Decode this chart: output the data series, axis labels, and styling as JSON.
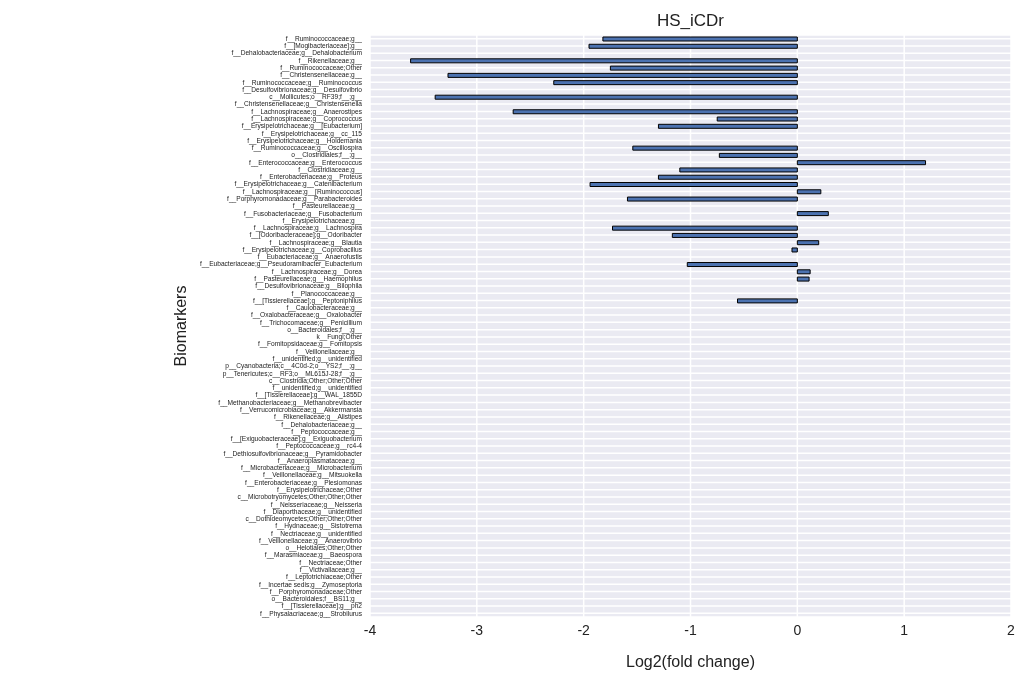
{
  "chart_data": {
    "type": "bar",
    "orientation": "horizontal",
    "title": "HS_iCDr",
    "xlabel": "Log2(fold change)",
    "ylabel": "Biomarkers",
    "categories": [
      "f__Ruminococcaceae;g__",
      "f__[Mogibacteriaceae];g__",
      "f__Dehalobacteriaceae;g__Dehalobacterium",
      "f__Rikenellaceae;g__",
      "f__Ruminococcaceae;Other",
      "f__Christensenellaceae;g__",
      "f__Ruminococcaceae;g__Ruminococcus",
      "f__Desulfovibrionaceae;g__Desulfovibrio",
      "c__Mollicutes;o__RF39;f__;g__",
      "f__Christensenellaceae;g__Christensenella",
      "f__Lachnospiraceae;g__Anaerostipes",
      "f__Lachnospiraceae;g__Coprococcus",
      "f__Erysipelotrichaceae;g__[Eubacterium]",
      "f__Erysipelotrichaceae;g__cc_115",
      "f__Erysipelotrichaceae;g__Holdemania",
      "f__Ruminococcaceae;g__Oscillospira",
      "o__Clostridiales;f__;g__",
      "f__Enterococcaceae;g__Enterococcus",
      "f__Clostridiaceae;g__",
      "f__Enterobacteriaceae;g__Proteus",
      "f__Erysipelotrichaceae;g__Catenibacterium",
      "f__Lachnospiraceae;g__[Ruminococcus]",
      "f__Porphyromonadaceae;g__Parabacteroides",
      "f__Pasteurellaceae;g__",
      "f__Fusobacteriaceae;g__Fusobacterium",
      "f__Erysipelotrichaceae;g__",
      "f__Lachnospiraceae;g__Lachnospira",
      "f__[Odoribacteraceae];g__Odoribacter",
      "f__Lachnospiraceae;g__Blautia",
      "f__Erysipelotrichaceae;g__Coprobacillus",
      "f__Eubacteriaceae;g__Anaerofustis",
      "f__Eubacteriaceae;g__Pseudoramibacter_Eubacterium",
      "f__Lachnospiraceae;g__Dorea",
      "f__Pasteurellaceae;g__Haemophilus",
      "f__Desulfovibrionaceae;g__Bilophila",
      "f__Planococcaceae;g__",
      "f__[Tissierellaceae];g__Peptoniphilus",
      "f__Caulobacteraceae;g__",
      "f__Oxalobacteraceae;g__Oxalobacter",
      "f__Trichocomaceae;g__Penicillium",
      "o__Bacteroidales;f__;g__",
      "k__Fungi;Other",
      "f__Fomitopsidaceae;g__Fomitopsis",
      "f__Veillonellaceae;g__",
      "f__unidentified;g__unidentified",
      "p__Cyanobacteria;c__4C0d-2;o__YS2;f__;g__",
      "p__Tenericutes;c__RF3;o__ML615J-28;f__;g__",
      "c__Clostridia;Other;Other;Other",
      "f__unidentified;g__unidentified",
      "f__[Tissierellaceae];g__WAL_1855D",
      "f__Methanobacteriaceae;g__Methanobrevibacter",
      "f__Verrucomicrobiaceae;g__Akkermansia",
      "f__Rikenellaceae;g__Alistipes",
      "f__Dehalobacteriaceae;g__",
      "f__Peptococcaceae;g__",
      "f__[Exiguobacteraceae];g__Exiguobacterium",
      "f__Peptococcaceae;g__rc4-4",
      "f__Dethiosulfovibrionaceae;g__Pyramidobacter",
      "f__Anaeroplasmataceae;g__",
      "f__Microbacteriaceae;g__Microbacterium",
      "f__Veillonellaceae;g__Mitsuokella",
      "f__Enterobacteriaceae;g__Plesiomonas",
      "f__Erysipelotrichaceae;Other",
      "c__Microbotryomycetes;Other;Other;Other",
      "f__Neisseriaceae;g__Neisseria",
      "f__Diaporthaceae;g__unidentified",
      "c__Dothideomycetes;Other;Other;Other",
      "f__Hydnaceae;g__Sistotrema",
      "f__Nectriaceae;g__unidentified",
      "f__Veillonellaceae;g__Anaerovibrio",
      "o__Helotiales;Other;Other",
      "f__Marasmiaceae;g__Baeospora",
      "f__Nectriaceae;Other",
      "f__Victivallaceae;g__",
      "f__Leptotrichiaceae;Other",
      "f__Incertae sedis;g__Zymoseptoria",
      "f__Porphyromonadaceae;Other",
      "o__Bacteroidales;f__BS11;g__",
      "f__[Tissierellaceae];g__ph2",
      "f__Physalacriaceae;g__Strobilurus"
    ],
    "values": [
      -1.82,
      -1.95,
      0,
      -3.62,
      -1.75,
      -3.27,
      -2.28,
      0,
      -3.39,
      0,
      -2.66,
      -0.75,
      -1.3,
      0,
      0,
      -1.54,
      -0.73,
      1.2,
      -1.1,
      -1.3,
      -1.94,
      0.22,
      -1.59,
      0,
      0.29,
      0,
      -1.73,
      -1.17,
      0.2,
      -0.05,
      0,
      -1.03,
      0.12,
      0.11,
      0,
      0,
      -0.56,
      0,
      0,
      0,
      0,
      0,
      0,
      0,
      0,
      0,
      0,
      0,
      0,
      0,
      0,
      0,
      0,
      0,
      0,
      0,
      0,
      0,
      0,
      0,
      0,
      0,
      0,
      0,
      0,
      0,
      0,
      0,
      0,
      0,
      0,
      0,
      0,
      0,
      0,
      0,
      0,
      0,
      0,
      0
    ],
    "color": "#4c72b0",
    "xlim": [
      -4,
      2
    ],
    "xticks": [
      -4,
      -3,
      -2,
      -1,
      0,
      1,
      2
    ],
    "grid": true
  }
}
